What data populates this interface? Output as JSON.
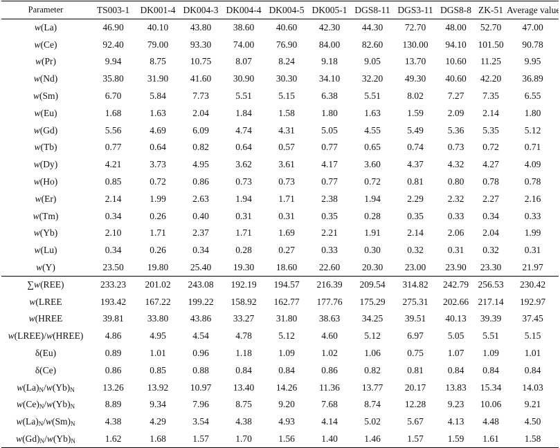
{
  "table": {
    "columns": [
      "Parameter",
      "TS003-1",
      "DK001-4",
      "DK004-3",
      "DK004-4",
      "DK004-5",
      "DK005-1",
      "DGS8-11",
      "DGS3-11",
      "DGS8-8",
      "ZK-51",
      "Average value"
    ],
    "rows_elements": [
      {
        "param": "w(La)",
        "values": [
          "46.90",
          "40.10",
          "43.80",
          "38.60",
          "40.60",
          "42.30",
          "44.30",
          "72.70",
          "48.00",
          "52.70",
          "47.00"
        ]
      },
      {
        "param": "w(Ce)",
        "values": [
          "92.40",
          "79.00",
          "93.30",
          "74.00",
          "76.90",
          "84.00",
          "82.60",
          "130.00",
          "94.10",
          "101.50",
          "90.78"
        ]
      },
      {
        "param": "w(Pr)",
        "values": [
          "9.94",
          "8.75",
          "10.75",
          "8.07",
          "8.24",
          "9.18",
          "9.05",
          "13.70",
          "10.60",
          "11.25",
          "9.95"
        ]
      },
      {
        "param": "w(Nd)",
        "values": [
          "35.80",
          "31.90",
          "41.60",
          "30.90",
          "30.30",
          "34.10",
          "32.20",
          "49.30",
          "40.60",
          "42.20",
          "36.89"
        ]
      },
      {
        "param": "w(Sm)",
        "values": [
          "6.70",
          "5.84",
          "7.73",
          "5.51",
          "5.15",
          "6.38",
          "5.51",
          "8.02",
          "7.27",
          "7.35",
          "6.55"
        ]
      },
      {
        "param": "w(Eu)",
        "values": [
          "1.68",
          "1.63",
          "2.04",
          "1.84",
          "1.58",
          "1.80",
          "1.63",
          "1.59",
          "2.09",
          "2.14",
          "1.80"
        ]
      },
      {
        "param": "w(Gd)",
        "values": [
          "5.56",
          "4.69",
          "6.09",
          "4.74",
          "4.31",
          "5.05",
          "4.55",
          "5.49",
          "5.36",
          "5.35",
          "5.12"
        ]
      },
      {
        "param": "w(Tb)",
        "values": [
          "0.77",
          "0.64",
          "0.82",
          "0.64",
          "0.57",
          "0.77",
          "0.65",
          "0.74",
          "0.73",
          "0.72",
          "0.71"
        ]
      },
      {
        "param": "w(Dy)",
        "values": [
          "4.21",
          "3.73",
          "4.95",
          "3.62",
          "3.61",
          "4.17",
          "3.60",
          "4.37",
          "4.32",
          "4.27",
          "4.09"
        ]
      },
      {
        "param": "w(Ho)",
        "values": [
          "0.85",
          "0.72",
          "0.86",
          "0.73",
          "0.73",
          "0.77",
          "0.72",
          "0.81",
          "0.80",
          "0.78",
          "0.78"
        ]
      },
      {
        "param": "w(Er)",
        "values": [
          "2.14",
          "1.99",
          "2.63",
          "1.94",
          "1.71",
          "2.38",
          "1.94",
          "2.29",
          "2.32",
          "2.27",
          "2.16"
        ]
      },
      {
        "param": "w(Tm)",
        "values": [
          "0.34",
          "0.26",
          "0.40",
          "0.31",
          "0.31",
          "0.35",
          "0.28",
          "0.35",
          "0.33",
          "0.34",
          "0.33"
        ]
      },
      {
        "param": "w(Yb)",
        "values": [
          "2.10",
          "1.71",
          "2.37",
          "1.71",
          "1.69",
          "2.21",
          "1.91",
          "2.14",
          "2.06",
          "2.04",
          "1.99"
        ]
      },
      {
        "param": "w(Lu)",
        "values": [
          "0.34",
          "0.26",
          "0.34",
          "0.28",
          "0.27",
          "0.33",
          "0.30",
          "0.32",
          "0.31",
          "0.32",
          "0.31"
        ]
      },
      {
        "param": "w(Y)",
        "values": [
          "23.50",
          "19.80",
          "25.40",
          "19.30",
          "18.60",
          "22.60",
          "20.30",
          "23.00",
          "23.90",
          "23.30",
          "21.97"
        ]
      }
    ],
    "rows_indices": [
      {
        "param": "∑w(REE)",
        "values": [
          "233.23",
          "201.02",
          "243.08",
          "192.19",
          "194.57",
          "216.39",
          "209.54",
          "314.82",
          "242.79",
          "256.53",
          "230.42"
        ]
      },
      {
        "param": "w(LREE",
        "values": [
          "193.42",
          "167.22",
          "199.22",
          "158.92",
          "162.77",
          "177.76",
          "175.29",
          "275.31",
          "202.66",
          "217.14",
          "192.97"
        ]
      },
      {
        "param": "w(HREE",
        "values": [
          "39.81",
          "33.80",
          "43.86",
          "33.27",
          "31.80",
          "38.63",
          "34.25",
          "39.51",
          "40.13",
          "39.39",
          "37.45"
        ]
      },
      {
        "param": "w(LREE)/w(HREE)",
        "values": [
          "4.86",
          "4.95",
          "4.54",
          "4.78",
          "5.12",
          "4.60",
          "5.12",
          "6.97",
          "5.05",
          "5.51",
          "5.15"
        ]
      },
      {
        "param": "δ(Eu)",
        "values": [
          "0.89",
          "1.01",
          "0.96",
          "1.18",
          "1.09",
          "1.02",
          "1.06",
          "0.75",
          "1.07",
          "1.09",
          "1.01"
        ]
      },
      {
        "param": "δ(Ce)",
        "values": [
          "0.86",
          "0.85",
          "0.88",
          "0.84",
          "0.84",
          "0.86",
          "0.82",
          "0.81",
          "0.84",
          "0.84",
          "0.84"
        ]
      },
      {
        "param": "w(La)N/w(Yb)N",
        "values": [
          "13.26",
          "13.92",
          "10.97",
          "13.40",
          "14.26",
          "11.36",
          "13.77",
          "20.17",
          "13.83",
          "15.34",
          "14.03"
        ]
      },
      {
        "param": "w(Ce)N/w(Yb)N",
        "values": [
          "8.89",
          "9.34",
          "7.96",
          "8.75",
          "9.20",
          "7.68",
          "8.74",
          "12.28",
          "9.23",
          "10.06",
          "9.21"
        ]
      },
      {
        "param": "w(La)N/w(Sm)N",
        "values": [
          "4.38",
          "4.29",
          "3.54",
          "4.38",
          "4.93",
          "4.14",
          "5.02",
          "5.67",
          "4.13",
          "4.48",
          "4.50"
        ]
      },
      {
        "param": "w(Gd)N/w(Yb)N",
        "values": [
          "1.62",
          "1.68",
          "1.57",
          "1.70",
          "1.56",
          "1.40",
          "1.46",
          "1.57",
          "1.59",
          "1.61",
          "1.58"
        ]
      }
    ]
  }
}
